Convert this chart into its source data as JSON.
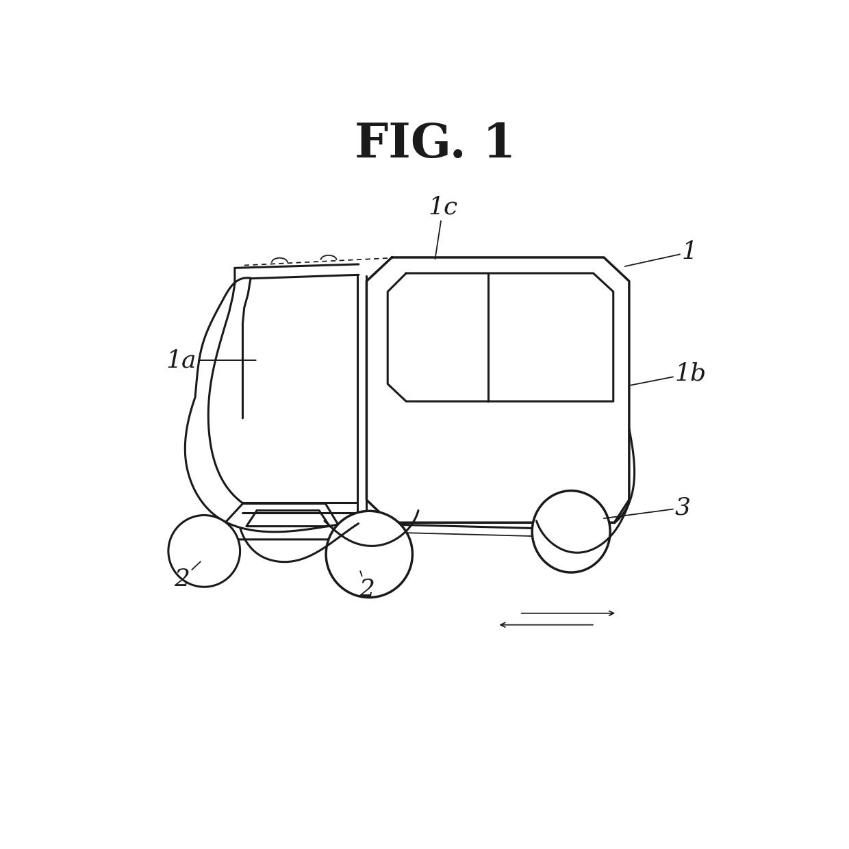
{
  "title": "FIG. 1",
  "bg": "#ffffff",
  "lc": "#1a1a1a",
  "lw": 2.2,
  "lw_thin": 1.3,
  "fig_size": [
    12.4,
    12.4
  ],
  "dpi": 100
}
